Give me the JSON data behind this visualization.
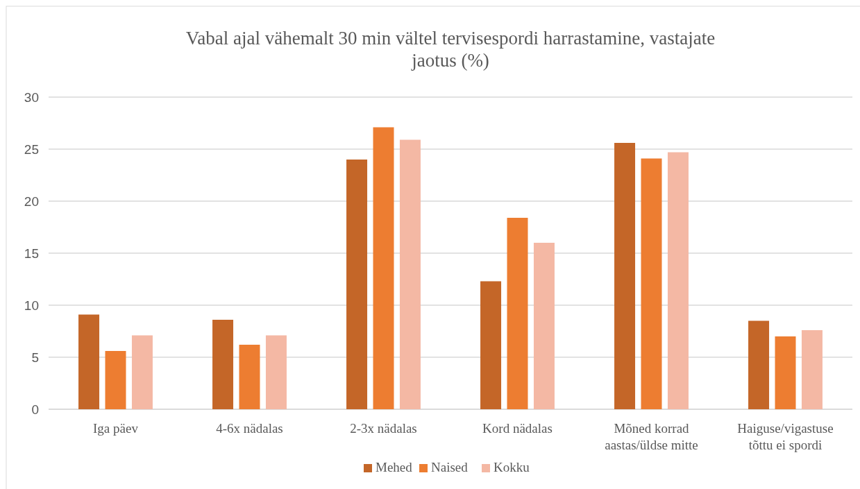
{
  "chart_data": {
    "type": "bar",
    "title": "Vabal ajal vähemalt 30 min vältel tervisespordi harrastamine, vastajate jaotus (%)",
    "categories": [
      "Iga päev",
      "4-6x nädalas",
      "2-3x nädalas",
      "Kord nädalas",
      "Mõned korrad aastas/üldse mitte",
      "Haiguse/vigastuse tõttu ei spordi"
    ],
    "series": [
      {
        "name": "Mehed",
        "color": "#c46628",
        "values": [
          9.1,
          8.6,
          24.0,
          12.3,
          25.6,
          8.5
        ]
      },
      {
        "name": "Naised",
        "color": "#ed7d31",
        "values": [
          5.6,
          6.2,
          27.1,
          18.4,
          24.1,
          7.0
        ]
      },
      {
        "name": "Kokku",
        "color": "#f4b8a4",
        "values": [
          7.1,
          7.1,
          25.9,
          16.0,
          24.7,
          7.6
        ]
      }
    ],
    "ylim": [
      0,
      30
    ],
    "yticks": [
      0,
      5,
      10,
      15,
      20,
      25,
      30
    ],
    "grid": "y",
    "legend": "bottom"
  }
}
